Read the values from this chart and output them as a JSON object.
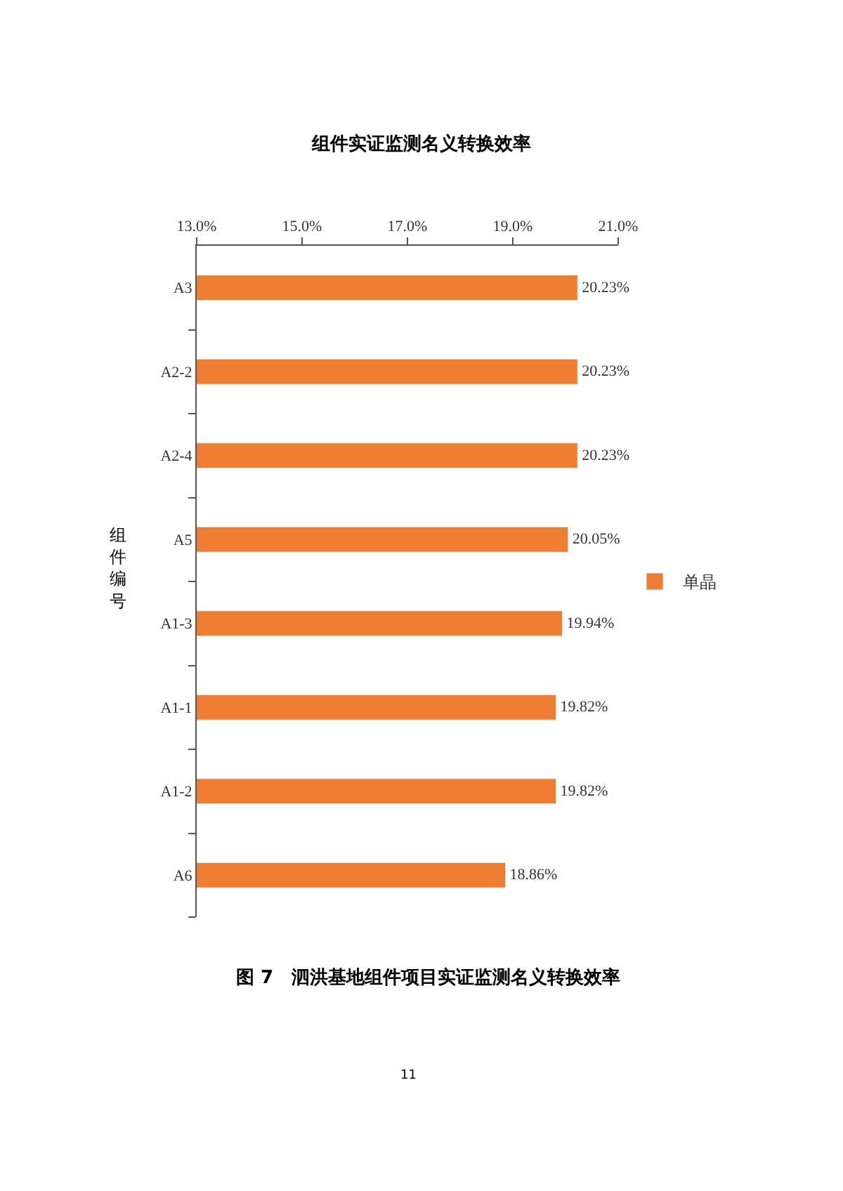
{
  "chart_data": {
    "type": "bar",
    "orientation": "horizontal",
    "title": "组件实证监测名义转换效率",
    "ylabel": "组件编号",
    "categories": [
      "A3",
      "A2-2",
      "A2-4",
      "A5",
      "A1-3",
      "A1-1",
      "A1-2",
      "A6"
    ],
    "series": [
      {
        "name": "单晶",
        "color": "#ed7d31",
        "values": [
          20.23,
          20.23,
          20.23,
          20.05,
          19.94,
          19.82,
          19.82,
          18.86
        ],
        "value_labels": [
          "20.23%",
          "20.23%",
          "20.23%",
          "20.05%",
          "19.94%",
          "19.82%",
          "19.82%",
          "18.86%"
        ]
      }
    ],
    "xlim": [
      13,
      21
    ],
    "xticks": [
      {
        "value": 13,
        "label": "13.0%"
      },
      {
        "value": 15,
        "label": "15.0%"
      },
      {
        "value": 17,
        "label": "17.0%"
      },
      {
        "value": 19,
        "label": "19.0%"
      },
      {
        "value": 21,
        "label": "21.0%"
      }
    ],
    "annotations": [
      "图 7　泗洪基地组件项目实证监测名义转换效率",
      "11"
    ],
    "legend": "right"
  }
}
